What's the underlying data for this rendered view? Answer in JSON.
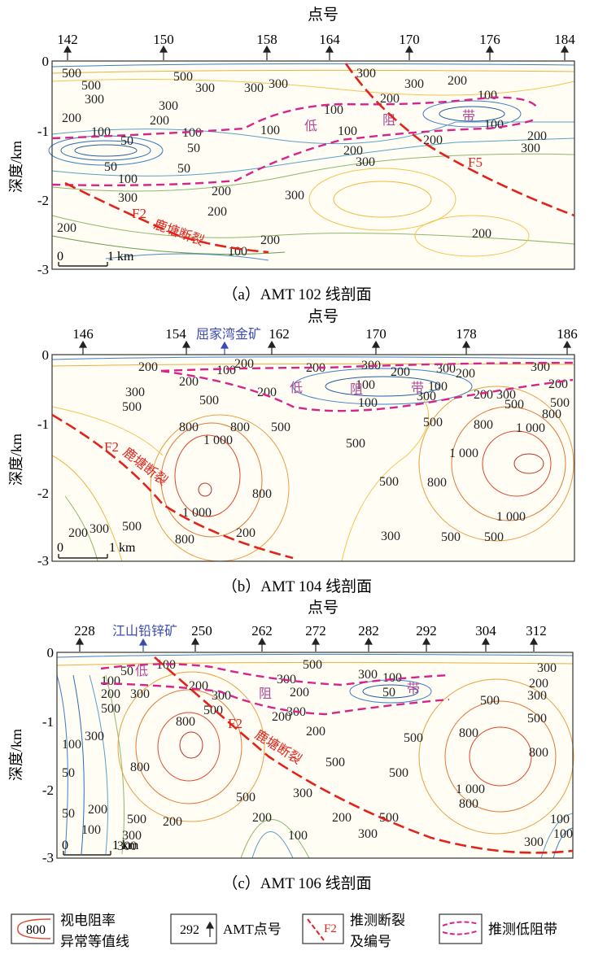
{
  "panels": [
    {
      "id": "a",
      "top_title": "点号",
      "stations": [
        "142",
        "150",
        "158",
        "164",
        "170",
        "176",
        "184"
      ],
      "y_label": "深度/km",
      "y_ticks": [
        "0",
        "-1",
        "-2",
        "-3"
      ],
      "scale": "1 km",
      "scale_zero": "0",
      "caption": "（a）AMT 102 线剖面",
      "contour_labels": [
        "500",
        "500",
        "500",
        "300",
        "300",
        "300",
        "300",
        "200",
        "200",
        "200",
        "200",
        "100",
        "100",
        "100",
        "50",
        "50",
        "50",
        "50",
        "100",
        "100",
        "100",
        "100",
        "100",
        "200",
        "200",
        "200",
        "200",
        "300",
        "300",
        "300",
        "300",
        "300",
        "300",
        "300",
        "200",
        "200",
        "200",
        "200",
        "100"
      ],
      "faults": [
        {
          "name": "F2",
          "text": "鹿塘断裂"
        },
        {
          "name": "F5",
          "text": ""
        }
      ],
      "low_band_chars": [
        "低",
        "阻",
        "带"
      ]
    },
    {
      "id": "b",
      "top_title": "点号",
      "stations": [
        "146",
        "154",
        "162",
        "170",
        "178",
        "186"
      ],
      "mine": "屈家湾金矿",
      "y_label": "深度/km",
      "y_ticks": [
        "0",
        "-1",
        "-2",
        "-3"
      ],
      "scale": "1 km",
      "scale_zero": "0",
      "caption": "（b）AMT 104 线剖面",
      "contour_labels": [
        "200",
        "100",
        "200",
        "200",
        "300",
        "300",
        "200",
        "300",
        "200",
        "200",
        "100",
        "100",
        "100",
        "200",
        "300",
        "200",
        "300",
        "200",
        "300",
        "500",
        "500",
        "500",
        "500",
        "500",
        "500",
        "800",
        "800",
        "800",
        "800",
        "1 000",
        "1 000",
        "1 000",
        "1 000",
        "500",
        "500",
        "800",
        "800",
        "1 000",
        "500",
        "500",
        "500",
        "800",
        "200",
        "300",
        "300",
        "200"
      ],
      "faults": [
        {
          "name": "F2",
          "text": "鹿塘断裂"
        }
      ],
      "low_band_chars": [
        "低",
        "阻",
        "带"
      ]
    },
    {
      "id": "c",
      "top_title": "点号",
      "stations": [
        "228",
        "250",
        "262",
        "272",
        "282",
        "292",
        "304",
        "312"
      ],
      "mine": "江山铅锌矿",
      "y_label": "深度/km",
      "y_ticks": [
        "0",
        "-1",
        "-2",
        "-3"
      ],
      "scale": "1 km",
      "scale_zero": "0",
      "caption": "（c）AMT 106 线剖面",
      "contour_labels": [
        "50",
        "100",
        "100",
        "200",
        "200",
        "300",
        "500",
        "300",
        "500",
        "100",
        "50",
        "300",
        "300",
        "200",
        "300",
        "500",
        "300",
        "200",
        "200",
        "500",
        "800",
        "800",
        "500",
        "500",
        "300",
        "300",
        "500",
        "800",
        "500",
        "800",
        "1 000",
        "800",
        "500",
        "300",
        "300",
        "300",
        "200",
        "200",
        "300",
        "200",
        "500",
        "300",
        "100",
        "100",
        "50",
        "100",
        "50",
        "200",
        "200",
        "100",
        "100",
        "500"
      ],
      "faults": [
        {
          "name": "F2",
          "text": "鹿塘断裂"
        }
      ],
      "low_band_chars": [
        "低",
        "阻",
        "带"
      ]
    }
  ],
  "legend": {
    "contour_value": "800",
    "contour_text_1": "视电阻率",
    "contour_text_2": "异常等值线",
    "station_value": "292",
    "station_text": "AMT点号",
    "fault_value": "F2",
    "fault_text_1": "推测断裂",
    "fault_text_2": "及编号",
    "lowres_text": "推测低阻带"
  },
  "colors": {
    "fault": "#e0231b",
    "low_band": "#d6248a",
    "mine": "#3b4bb0",
    "contour_high": "#e0452a",
    "contour_mid": "#e8b040",
    "contour_low": "#3a7fc8"
  }
}
